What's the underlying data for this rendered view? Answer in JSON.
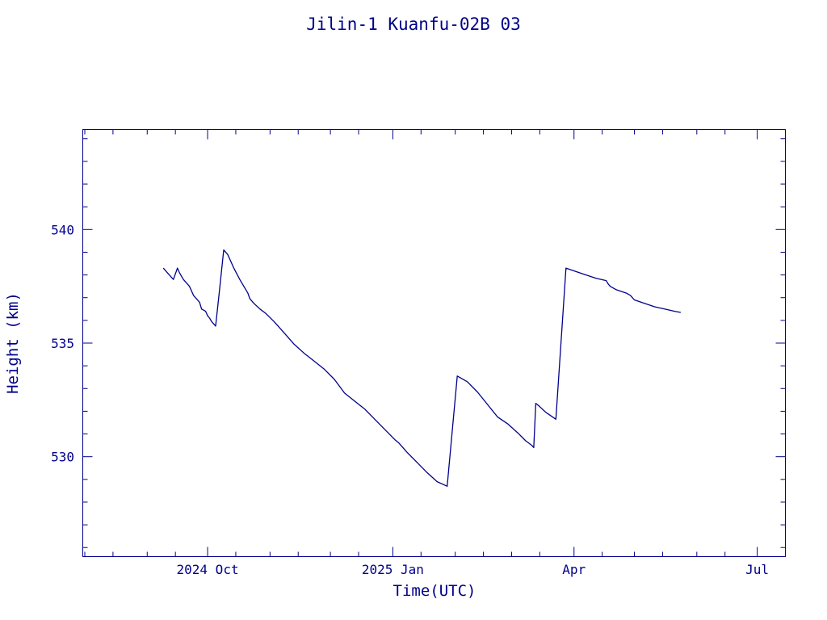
{
  "chart_data": {
    "type": "line",
    "title": "Jilin-1 Kuanfu-02B 03",
    "xlabel": "Time(UTC)",
    "ylabel": "Height (km)",
    "color": "#00008b",
    "grid": false,
    "x_tick_labels": [
      {
        "date": "2024-10-01",
        "label": "2024 Oct"
      },
      {
        "date": "2025-01-01",
        "label": "2025 Jan"
      },
      {
        "date": "2025-04-01",
        "label": "Apr"
      },
      {
        "date": "2025-07-01",
        "label": "Jul"
      }
    ],
    "y_tick_labels": [
      {
        "value": 530,
        "label": "530"
      },
      {
        "value": 535,
        "label": "535"
      },
      {
        "value": 540,
        "label": "540"
      }
    ],
    "xlim": [
      "2024-07-31",
      "2025-07-15"
    ],
    "ylim": [
      525.6,
      544.4
    ],
    "series": [
      {
        "x": [
          "2024-09-09",
          "2024-09-11",
          "2024-09-14",
          "2024-09-16",
          "2024-09-17",
          "2024-09-19",
          "2024-09-22",
          "2024-09-24",
          "2024-09-27",
          "2024-09-28",
          "2024-09-30",
          "2024-10-01",
          "2024-10-02",
          "2024-10-03",
          "2024-10-05",
          "2024-10-07",
          "2024-10-09",
          "2024-10-11",
          "2024-10-12",
          "2024-10-14",
          "2024-10-17",
          "2024-10-19",
          "2024-10-21",
          "2024-10-22",
          "2024-10-24",
          "2024-10-27",
          "2024-10-30",
          "2024-11-03",
          "2024-11-08",
          "2024-11-13",
          "2024-11-18",
          "2024-11-23",
          "2024-11-28",
          "2024-12-03",
          "2024-12-08",
          "2024-12-13",
          "2024-12-18",
          "2024-12-23",
          "2024-12-28",
          "2025-01-02",
          "2025-01-04",
          "2025-01-06",
          "2025-01-08",
          "2025-01-13",
          "2025-01-18",
          "2025-01-23",
          "2025-01-28",
          "2025-02-02",
          "2025-02-07",
          "2025-02-12",
          "2025-02-17",
          "2025-02-22",
          "2025-02-27",
          "2025-03-04",
          "2025-03-08",
          "2025-03-11",
          "2025-03-12",
          "2025-03-13",
          "2025-03-15",
          "2025-03-18",
          "2025-03-23",
          "2025-03-28",
          "2025-04-02",
          "2025-04-07",
          "2025-04-12",
          "2025-04-17",
          "2025-04-18",
          "2025-04-19",
          "2025-04-22",
          "2025-04-27",
          "2025-04-29",
          "2025-04-30",
          "2025-05-01",
          "2025-05-06",
          "2025-05-11",
          "2025-05-16",
          "2025-05-21",
          "2025-05-24"
        ],
        "y": [
          538.3,
          538.1,
          537.8,
          538.3,
          538.1,
          537.8,
          537.5,
          537.1,
          536.8,
          536.5,
          536.4,
          536.2,
          536.1,
          535.95,
          535.75,
          537.4,
          539.1,
          538.9,
          538.7,
          538.3,
          537.8,
          537.5,
          537.2,
          536.95,
          536.75,
          536.5,
          536.3,
          535.95,
          535.45,
          534.95,
          534.55,
          534.2,
          533.85,
          533.4,
          532.8,
          532.45,
          532.1,
          531.65,
          531.2,
          530.75,
          530.6,
          530.4,
          530.2,
          529.75,
          529.3,
          528.9,
          528.7,
          533.55,
          533.3,
          532.85,
          532.3,
          531.75,
          531.45,
          531.05,
          530.7,
          530.5,
          530.4,
          532.35,
          532.2,
          531.95,
          531.65,
          538.3,
          538.15,
          538.0,
          537.85,
          537.75,
          537.6,
          537.5,
          537.35,
          537.2,
          537.1,
          537.0,
          536.9,
          536.75,
          536.6,
          536.5,
          536.4,
          536.35
        ]
      }
    ]
  }
}
